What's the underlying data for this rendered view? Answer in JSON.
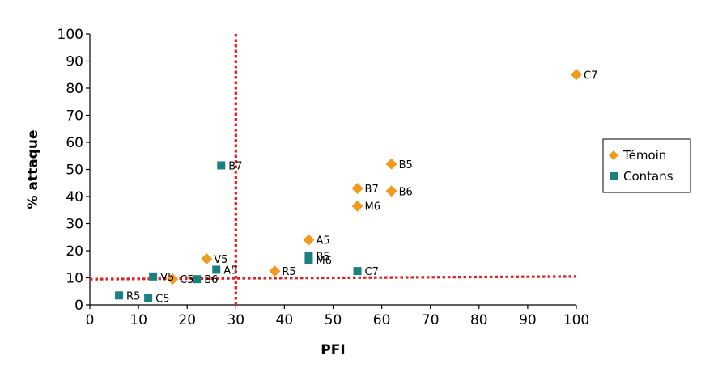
{
  "chart_data": {
    "type": "scatter",
    "xlabel": "PFI",
    "ylabel": "% attaque",
    "xlim": [
      0,
      100
    ],
    "ylim": [
      0,
      100
    ],
    "xticks": [
      0,
      10,
      20,
      30,
      40,
      50,
      60,
      70,
      80,
      90,
      100
    ],
    "yticks": [
      0,
      10,
      20,
      30,
      40,
      50,
      60,
      70,
      80,
      90,
      100
    ],
    "grid": false,
    "legend_position": "right",
    "series": [
      {
        "name": "Témoin",
        "marker": "diamond",
        "color": "#F29A1E",
        "points": [
          {
            "x": 100,
            "y": 85,
            "label": "C7"
          },
          {
            "x": 62,
            "y": 52,
            "label": "B5"
          },
          {
            "x": 55,
            "y": 43,
            "label": "B7"
          },
          {
            "x": 62,
            "y": 42,
            "label": "B6"
          },
          {
            "x": 55,
            "y": 36.5,
            "label": "M6"
          },
          {
            "x": 45,
            "y": 24,
            "label": "A5"
          },
          {
            "x": 24,
            "y": 17,
            "label": "V5"
          },
          {
            "x": 38,
            "y": 12.5,
            "label": "R5"
          },
          {
            "x": 17,
            "y": 9.5,
            "label": "C5"
          }
        ]
      },
      {
        "name": "Contans",
        "marker": "square",
        "color": "#1A8080",
        "points": [
          {
            "x": 27,
            "y": 51.5,
            "label": "B7"
          },
          {
            "x": 45,
            "y": 18,
            "label": "B5"
          },
          {
            "x": 45,
            "y": 16.5,
            "label": "M6"
          },
          {
            "x": 55,
            "y": 12.5,
            "label": "C7"
          },
          {
            "x": 26,
            "y": 13,
            "label": "A5"
          },
          {
            "x": 13,
            "y": 10.5,
            "label": "V5"
          },
          {
            "x": 22,
            "y": 9.5,
            "label": "B6"
          },
          {
            "x": 6,
            "y": 3.5,
            "label": "R5"
          },
          {
            "x": 12,
            "y": 2.5,
            "label": "C5"
          }
        ]
      }
    ],
    "reference_lines": [
      {
        "orientation": "vertical",
        "value": 30,
        "color": "#E0201E",
        "style": "dotted"
      },
      {
        "orientation": "horizontal",
        "from": [
          0,
          9.5
        ],
        "to": [
          100,
          10.5
        ],
        "color": "#E0201E",
        "style": "dotted"
      }
    ]
  }
}
